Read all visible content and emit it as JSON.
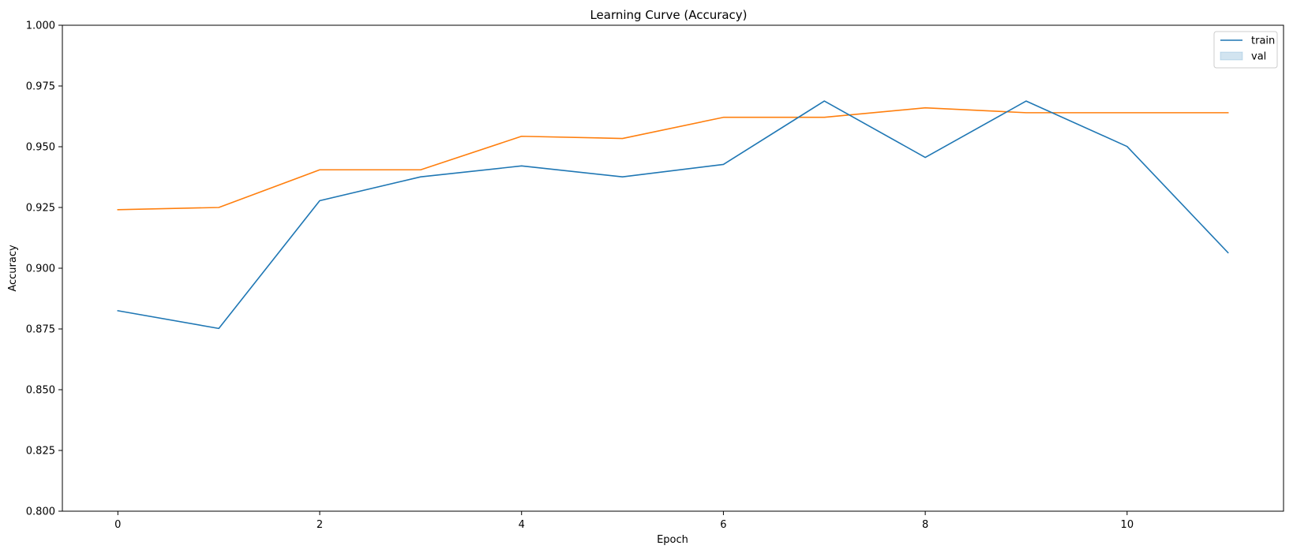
{
  "chart_data": {
    "type": "line",
    "title": "Learning Curve (Accuracy)",
    "xlabel": "Epoch",
    "ylabel": "Accuracy",
    "xlim": [
      -0.55,
      11.55
    ],
    "ylim": [
      0.8,
      1.0
    ],
    "x_ticks": [
      0,
      2,
      4,
      6,
      8,
      10
    ],
    "y_ticks": [
      0.8,
      0.825,
      0.85,
      0.875,
      0.9,
      0.925,
      0.95,
      0.975,
      1.0
    ],
    "x_tick_labels": [
      "0",
      "2",
      "4",
      "6",
      "8",
      "10"
    ],
    "y_tick_labels": [
      "0.800",
      "0.825",
      "0.850",
      "0.875",
      "0.900",
      "0.925",
      "0.950",
      "0.975",
      "1.000"
    ],
    "grid": false,
    "legend_position": "top-right",
    "x": [
      0,
      1,
      2,
      3,
      4,
      5,
      6,
      7,
      8,
      9,
      10,
      11
    ],
    "series": [
      {
        "name": "train",
        "color": "#1f77b4",
        "legend_style": "line",
        "values": [
          0.8825,
          0.8752,
          0.9278,
          0.9376,
          0.9421,
          0.9376,
          0.9427,
          0.9688,
          0.9456,
          0.9688,
          0.9501,
          0.9064
        ]
      },
      {
        "color": "#ff7f0e",
        "values": [
          0.9241,
          0.925,
          0.9405,
          0.9405,
          0.9543,
          0.9534,
          0.9621,
          0.9621,
          0.966,
          0.964,
          0.964,
          0.964
        ]
      }
    ],
    "legend_entries": [
      {
        "label": "train",
        "color": "#1f77b4",
        "style": "line"
      },
      {
        "label": "val",
        "color": "#1f77b4",
        "style": "patch"
      }
    ]
  }
}
